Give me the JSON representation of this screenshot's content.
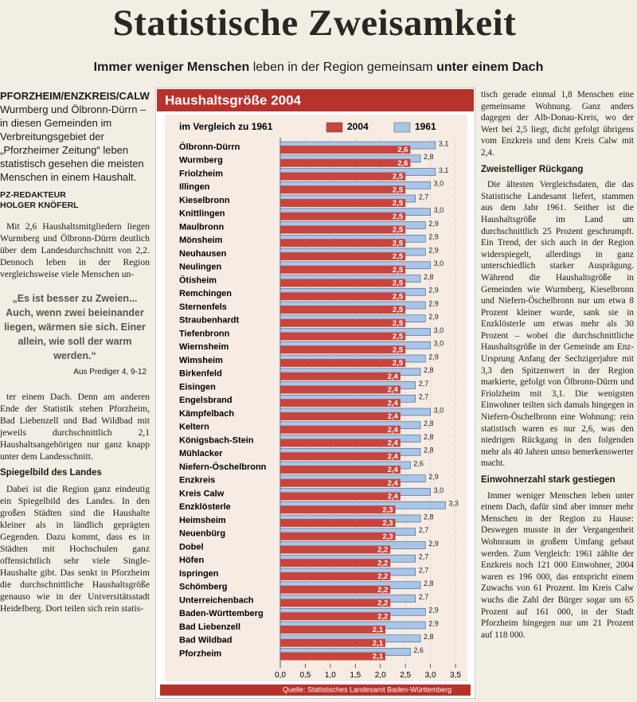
{
  "headline": "Statistische Zweisamkeit",
  "subheadline": [
    "Immer weniger Menschen",
    "leben in der Region gemeinsam",
    "unter einem Dach"
  ],
  "left_column": {
    "dateline": "PFORZHEIM/ENZKREIS/CALW.",
    "lead": "Wurmberg und Ölbronn-Dürrn – in diesen Gemeinden im Verbreitungsgebiet der „Pforzheimer Zeitung“ leben statistisch gesehen die meisten Menschen in einem Haushalt.",
    "author_role": "PZ-REDAKTEUR",
    "author": "HOLGER KNÖFERL",
    "paragraph_1": "Mit 2,6 Haushaltsmitgliedern liegen Wurmberg und Ölbronn-Dürrn deutlich über dem Landesdurchschnitt von 2,2. Dennoch leben in der Region vergleichsweise viele Menschen un-",
    "quote": "„Es ist besser zu Zweien... Auch, wenn zwei beieinander liegen, wärmen sie sich. Einer allein, wie soll der warm werden.“",
    "quote_source": "Aus Prediger 4, 9-12",
    "paragraph_2": "ter einem Dach. Denn am anderen Ende der Statistik stehen Pforzheim, Bad Liebenzell und Bad Wildbad mit jeweils durchschnittlich 2,1 Haushaltsangehörigen nur ganz knapp unter dem Landesschnitt.",
    "heading": "Spiegelbild des Landes",
    "paragraph_3": "Dabei ist die Region ganz eindeutig ein Spiegelbild des Landes. In den großen Städten sind die Haushalte kleiner als in ländlich geprägten Gegenden. Dazu kommt, dass es in Städten mit Hochschulen ganz offensichtlich sehr viele Single-Haushalte gibt. Das senkt in Pforzheim die durchschnittliche Haushaltsgröße genauso wie in der Universitätsstadt Heidelberg. Dort teilen sich rein statis-"
  },
  "right_column": {
    "paragraph_1": "tisch gerade einmal 1,8 Menschen eine gemeinsame Wohnung. Ganz anders dagegen der Alb-Donau-Kreis, wo der Wert bei 2,5 liegt, dicht gefolgt übrigens vom Enzkreis und dem Kreis Calw mit 2,4.",
    "heading_1": "Zweistelliger Rückgang",
    "paragraph_2": "Die ältesten Vergleichsdaten, die das Statistische Landesamt liefert, stammen aus dem Jahr 1961. Seither ist die Haushaltsgröße im Land um durchschnittlich 25 Prozent geschrumpft. Ein Trend, der sich auch in der Region widerspiegelt, allerdings in ganz unterschiedlich starker Ausprägung. Während die Haushaltsgröße in Gemeinden wie Wurmberg, Kieselbronn und Niefern-Öschelbronn nur um etwa 8 Prozent kleiner wurde, sank sie in Enzklösterle um etwas mehr als 30 Prozent – wobei die durchschnittliche Haushaltsgröße in der Gemeinde am Enz-Ursprung Anfang der Sechzigerjahre mit 3,3 den Spitzenwert in der Region markierte, gefolgt von Ölbronn-Dürrn und Friolzheim mit 3,1. Die wenigsten Einwohner teilten sich damals hingegen in Niefern-Öschelbronn eine Wohnung: rein statistisch waren es nur 2,6, was den niedrigen Rückgang in den folgenden mehr als 40 Jahren umso bemerkenswerter macht.",
    "heading_2": "Einwohnerzahl stark gestiegen",
    "paragraph_3": "Immer weniger Menschen leben unter einem Dach, dafür sind aber immer mehr Menschen in der Region zu Hause: Deswegen musste in der Vergangenheit Wohnraum in großem Umfang gebaut werden. Zum Vergleich: 1961 zählte der Enzkreis noch 121 000 Einwohner, 2004 waren es 196 000, das entspricht einem Zuwachs von 61 Prozent. Im Kreis Calw wuchs die Zahl der Bürger sogar um 65 Prozent auf 161 000, in der Stadt Pforzheim hingegen nur um 21 Prozent auf 118 000."
  },
  "chart_data": {
    "type": "bar",
    "orientation": "horizontal",
    "title": "Haushaltsgröße 2004",
    "subtitle": "im Vergleich zu 1961",
    "source": "Quelle: Statistisches Landesamt Baden-Württemberg",
    "categories": [
      "Ölbronn-Dürrn",
      "Wurmberg",
      "Friolzheim",
      "Illingen",
      "Kieselbronn",
      "Knittlingen",
      "Maulbronn",
      "Mönsheim",
      "Neuhausen",
      "Neulingen",
      "Ötisheim",
      "Remchingen",
      "Sternenfels",
      "Straubenhardt",
      "Tiefenbronn",
      "Wiernsheim",
      "Wimsheim",
      "Birkenfeld",
      "Eisingen",
      "Engelsbrand",
      "Kämpfelbach",
      "Keltern",
      "Königsbach-Stein",
      "Mühlacker",
      "Niefern-Öschelbronn",
      "Enzkreis",
      "Kreis Calw",
      "Enzklösterle",
      "Heimsheim",
      "Neuenbürg",
      "Dobel",
      "Höfen",
      "Ispringen",
      "Schömberg",
      "Unterreichenbach",
      "Baden-Württemberg",
      "Bad Liebenzell",
      "Bad Wildbad",
      "Pforzheim"
    ],
    "series": [
      {
        "name": "2004",
        "color": "#c8443c",
        "values": [
          2.6,
          2.6,
          2.5,
          2.5,
          2.5,
          2.5,
          2.5,
          2.5,
          2.5,
          2.5,
          2.5,
          2.5,
          2.5,
          2.5,
          2.5,
          2.5,
          2.5,
          2.4,
          2.4,
          2.4,
          2.4,
          2.4,
          2.4,
          2.4,
          2.4,
          2.4,
          2.4,
          2.3,
          2.3,
          2.3,
          2.2,
          2.2,
          2.2,
          2.2,
          2.2,
          2.2,
          2.1,
          2.1,
          2.1
        ],
        "value_labels": [
          "2,6",
          "2,6",
          "2,5",
          "2,5",
          "2,5",
          "2,5",
          "2,5",
          "2,5",
          "2,5",
          "2,5",
          "2,5",
          "2,5",
          "2,5",
          "2,5",
          "2,5",
          "2,5",
          "2,5",
          "2,4",
          "2,4",
          "2,4",
          "2,4",
          "2,4",
          "2,4",
          "2,4",
          "2,4",
          "2,4",
          "2,4",
          "2,3",
          "2,3",
          "2,3",
          "2,2",
          "2,2",
          "2,2",
          "2,2",
          "2,2",
          "2,2",
          "2,1",
          "2,1",
          "2,1"
        ]
      },
      {
        "name": "1961",
        "color": "#a9c6e8",
        "values": [
          3.1,
          2.8,
          3.1,
          3.0,
          2.7,
          3.0,
          2.9,
          2.9,
          2.9,
          3.0,
          2.8,
          2.9,
          2.9,
          2.9,
          3.0,
          3.0,
          2.9,
          2.8,
          2.7,
          2.7,
          3.0,
          2.8,
          2.8,
          2.8,
          2.6,
          2.9,
          3.0,
          3.3,
          2.8,
          2.7,
          2.9,
          2.7,
          2.7,
          2.8,
          2.7,
          2.9,
          2.9,
          2.8,
          2.6
        ],
        "value_labels": [
          "3,1",
          "2,8",
          "3,1",
          "3,0",
          "2,7",
          "3,0",
          "2,9",
          "2,9",
          "2,9",
          "3,0",
          "2,8",
          "2,9",
          "2,9",
          "2,9",
          "3,0",
          "3,0",
          "2,9",
          "2,8",
          "2,7",
          "2,7",
          "3,0",
          "2,8",
          "2,8",
          "2,8",
          "2,6",
          "2,9",
          "3,0",
          "3,3",
          "2,8",
          "2,7",
          "2,9",
          "2,7",
          "2,7",
          "2,8",
          "2,7",
          "2,9",
          "2,9",
          "2,8",
          "2,6"
        ]
      }
    ],
    "xlim": [
      0,
      3.5
    ],
    "xticks": [
      {
        "value": 0,
        "label": "0,0"
      },
      {
        "value": 0.5,
        "label": "0,5"
      },
      {
        "value": 1,
        "label": "1,0"
      },
      {
        "value": 1.5,
        "label": "1,5"
      },
      {
        "value": 2,
        "label": "2,0"
      },
      {
        "value": 2.5,
        "label": "2,5"
      },
      {
        "value": 3,
        "label": "3,0"
      },
      {
        "value": 3.5,
        "label": "3,5"
      }
    ],
    "grid": true
  }
}
